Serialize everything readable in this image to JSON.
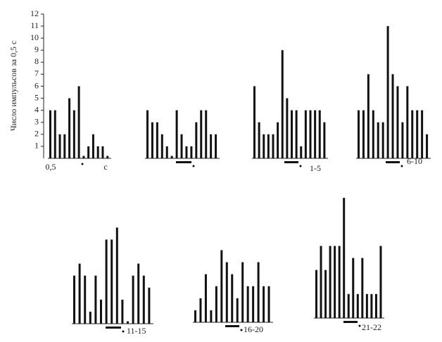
{
  "chart_data": [
    {
      "type": "bar",
      "ylabel": "Число импульсов за 0,5 с",
      "xlabel_start": "0,5",
      "xlabel_end": "с",
      "values": [
        4,
        4,
        2,
        2,
        5,
        4,
        6,
        0.2,
        1,
        2,
        1,
        1,
        0.2
      ],
      "ylim": [
        0,
        12
      ],
      "yticks": [
        1,
        2,
        3,
        4,
        5,
        6,
        7,
        8,
        9,
        10,
        11,
        12
      ],
      "color": "#111111"
    },
    {
      "type": "bar",
      "values": [
        4,
        3,
        3,
        2,
        1,
        0.2,
        4,
        2,
        1,
        1,
        3,
        4,
        4,
        2,
        2
      ],
      "color": "#111111"
    },
    {
      "type": "bar",
      "label": "1-5",
      "values": [
        6,
        3,
        2,
        2,
        2,
        3,
        9,
        5,
        4,
        4,
        1,
        4,
        4,
        4,
        4,
        3
      ],
      "color": "#111111"
    },
    {
      "type": "bar",
      "label": "6-10",
      "values": [
        4,
        4,
        7,
        4,
        3,
        3,
        11,
        7,
        6,
        3,
        6,
        4,
        4,
        4,
        2
      ],
      "color": "#111111"
    },
    {
      "type": "bar",
      "label": "11-15",
      "values": [
        4,
        5,
        4,
        1,
        4,
        2,
        7,
        7,
        8,
        2,
        0.2,
        4,
        5,
        4,
        3
      ],
      "color": "#111111"
    },
    {
      "type": "bar",
      "label": "16-20",
      "values": [
        1,
        2,
        4,
        1,
        3,
        6,
        5,
        4,
        2,
        5,
        3,
        3,
        5,
        3,
        3
      ],
      "color": "#111111"
    },
    {
      "type": "bar",
      "label": "21-22",
      "values": [
        4,
        6,
        4,
        6,
        6,
        6,
        10,
        2,
        5,
        2,
        5,
        2,
        2,
        2,
        6
      ],
      "color": "#111111"
    }
  ]
}
